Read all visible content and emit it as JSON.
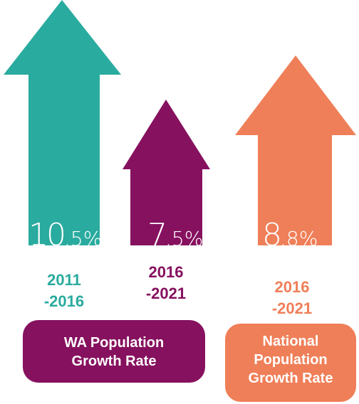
{
  "items": [
    {
      "value_big": "10",
      "value_small": ".5%",
      "period_lines": [
        "2011",
        "-2016"
      ]
    },
    {
      "value_big": "7",
      "value_small": ".5%",
      "period_lines": [
        "2016",
        "-2021"
      ]
    },
    {
      "value_big": "8",
      "value_small": ".8%",
      "period_lines": [
        "2016",
        "-2021"
      ]
    }
  ],
  "labels": [
    {
      "lines": [
        "WA Population",
        "Growth Rate"
      ]
    },
    {
      "lines": [
        "National",
        "Population",
        "Growth Rate"
      ]
    }
  ]
}
